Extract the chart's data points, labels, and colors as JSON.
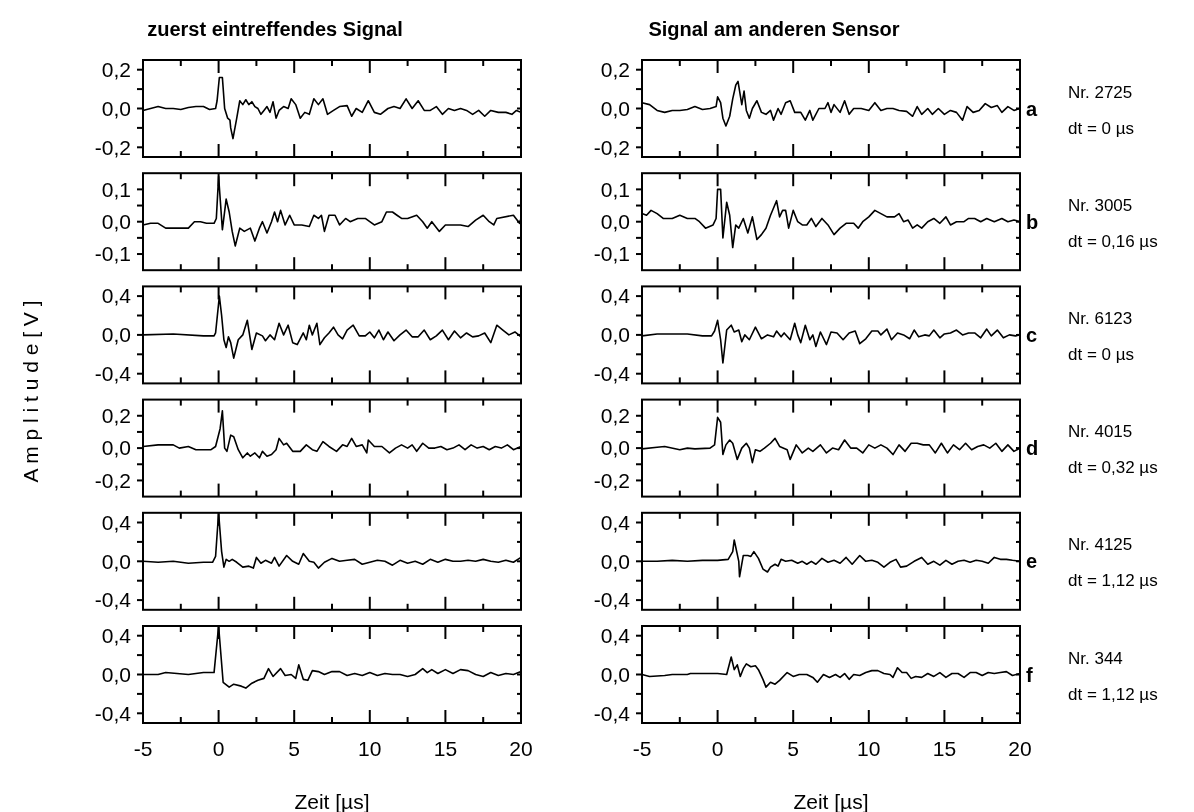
{
  "chart_data": [
    {
      "type": "line",
      "title": "zuerst eintreffendes Signal",
      "color": "#000000",
      "tick_labels": "y",
      "xlim": [
        -5,
        20
      ],
      "xticks": [
        -5,
        {
          "value": -2.5,
          "label": null
        },
        0,
        {
          "value": 2.5,
          "label": null
        },
        5,
        {
          "value": 7.5,
          "label": null
        },
        10,
        {
          "value": 12.5,
          "label": null
        },
        15,
        {
          "value": 17.5,
          "label": null
        },
        20
      ],
      "ylim": [
        -0.25,
        0.25
      ],
      "yticks": [
        {
          "value": -0.2,
          "label": "-0,2"
        },
        {
          "value": -0.1,
          "label": null
        },
        {
          "value": 0,
          "label": "0,0"
        },
        {
          "value": 0.1,
          "label": null
        },
        {
          "value": 0.2,
          "label": "0,2"
        }
      ],
      "x": [
        -5,
        -4.5,
        -4,
        -3.5,
        -3,
        -2.5,
        -2,
        -1.5,
        -1,
        -0.6,
        -0.2,
        -0.1,
        0.05,
        0.25,
        0.4,
        0.6,
        0.75,
        0.8,
        0.95,
        1.2,
        1.4,
        1.6,
        1.8,
        2,
        2.2,
        2.4,
        2.6,
        2.8,
        3,
        3.2,
        3.4,
        3.6,
        3.8,
        4,
        4.3,
        4.6,
        4.8,
        5.1,
        5.4,
        5.7,
        6,
        6.3,
        6.6,
        6.9,
        7.2,
        7.6,
        8,
        8.5,
        8.8,
        9.1,
        9.5,
        9.9,
        10.3,
        10.7,
        11.2,
        11.6,
        12,
        12.4,
        12.8,
        13.2,
        13.6,
        14,
        14.4,
        14.8,
        15.2,
        15.6,
        16,
        16.4,
        16.8,
        17.2,
        17.6,
        18,
        18.5,
        19,
        19.4,
        19.7,
        20
      ],
      "values": [
        -0.01,
        0,
        0.01,
        0,
        0,
        -0.005,
        0.005,
        0.01,
        0.01,
        -0.005,
        0,
        0.04,
        0.16,
        0.16,
        0,
        -0.05,
        -0.06,
        -0.1,
        -0.155,
        -0.05,
        0.04,
        0.02,
        0.045,
        0.02,
        0.035,
        0.01,
        0,
        -0.03,
        -0.01,
        0.01,
        -0.02,
        0.035,
        -0.05,
        -0.01,
        0.01,
        0,
        0.05,
        0.02,
        -0.05,
        -0.02,
        -0.03,
        0.05,
        0.02,
        0.05,
        -0.03,
        -0.01,
        0.01,
        0.015,
        -0.04,
        0,
        -0.02,
        0.04,
        -0.02,
        -0.03,
        0,
        0.01,
        0,
        0.05,
        0,
        0.04,
        -0.01,
        -0.01,
        0.01,
        -0.03,
        0,
        -0.01,
        0,
        -0.01,
        -0.03,
        -0.01,
        -0.04,
        -0.01,
        -0.02,
        -0.02,
        -0.03,
        -0.01,
        -0.02
      ]
    },
    {
      "type": "line",
      "title": "Signal am anderen Sensor",
      "annotations": [
        "a",
        "Nr. 2725",
        "dt = 0 µs"
      ],
      "color": "#000000",
      "tick_labels": "y",
      "xlim": [
        -5,
        20
      ],
      "xticks": [
        -5,
        {
          "value": -2.5,
          "label": null
        },
        0,
        {
          "value": 2.5,
          "label": null
        },
        5,
        {
          "value": 7.5,
          "label": null
        },
        10,
        {
          "value": 12.5,
          "label": null
        },
        15,
        {
          "value": 17.5,
          "label": null
        },
        20
      ],
      "ylim": [
        -0.25,
        0.25
      ],
      "yticks": [
        {
          "value": -0.2,
          "label": "-0,2"
        },
        {
          "value": -0.1,
          "label": null
        },
        {
          "value": 0,
          "label": "0,0"
        },
        {
          "value": 0.1,
          "label": null
        },
        {
          "value": 0.2,
          "label": "0,2"
        }
      ],
      "x": [
        -5,
        -4.5,
        -4,
        -3.5,
        -3,
        -2.5,
        -2,
        -1.5,
        -1,
        -0.5,
        -0.1,
        0,
        0.2,
        0.35,
        0.55,
        0.8,
        1,
        1.2,
        1.35,
        1.6,
        1.75,
        1.9,
        2.1,
        2.3,
        2.6,
        2.9,
        3.2,
        3.5,
        3.7,
        4,
        4.2,
        4.5,
        4.8,
        5.1,
        5.5,
        5.8,
        6.1,
        6.3,
        6.7,
        7.1,
        7.3,
        7.5,
        7.7,
        8.1,
        8.4,
        8.7,
        9,
        9.5,
        10,
        10.4,
        10.8,
        11.2,
        11.6,
        12,
        12.5,
        12.9,
        13.2,
        13.5,
        13.9,
        14.2,
        14.6,
        15,
        15.4,
        15.8,
        16.2,
        16.5,
        16.9,
        17.3,
        17.7,
        18.1,
        18.5,
        18.8,
        19.2,
        19.6,
        20
      ],
      "values": [
        0.03,
        0.02,
        -0.01,
        -0.02,
        -0.01,
        -0.01,
        -0.005,
        0.01,
        -0.005,
        0,
        0.01,
        0.06,
        0.03,
        -0.05,
        -0.09,
        -0.04,
        0.05,
        0.12,
        0.14,
        0.02,
        0.09,
        -0.01,
        -0.05,
        0,
        0.04,
        -0.02,
        -0.03,
        -0.01,
        -0.06,
        0,
        -0.03,
        0.03,
        0.04,
        -0.02,
        -0.02,
        -0.06,
        -0.01,
        -0.06,
        0,
        0,
        0.03,
        -0.02,
        0.02,
        -0.02,
        0.04,
        -0.03,
        0,
        0,
        -0.01,
        0.03,
        -0.01,
        0,
        0,
        -0.01,
        -0.015,
        -0.04,
        0.01,
        -0.03,
        0,
        -0.03,
        0,
        -0.03,
        -0.01,
        -0.02,
        -0.06,
        0.01,
        -0.02,
        -0.01,
        0.025,
        0.005,
        0.015,
        -0.02,
        0.01,
        -0.01,
        0
      ]
    },
    {
      "type": "line",
      "color": "#000000",
      "tick_labels": "y",
      "xlim": [
        -5,
        20
      ],
      "xticks": [
        -5,
        {
          "value": -2.5,
          "label": null
        },
        0,
        {
          "value": 2.5,
          "label": null
        },
        5,
        {
          "value": 7.5,
          "label": null
        },
        10,
        {
          "value": 12.5,
          "label": null
        },
        15,
        {
          "value": 17.5,
          "label": null
        },
        20
      ],
      "ylim": [
        -0.15,
        0.15
      ],
      "yticks": [
        {
          "value": -0.1,
          "label": "-0,1"
        },
        {
          "value": -0.05,
          "label": null
        },
        {
          "value": 0,
          "label": "0,0"
        },
        {
          "value": 0.05,
          "label": null
        },
        {
          "value": 0.1,
          "label": "0,1"
        }
      ],
      "x": [
        -5,
        -4.5,
        -4,
        -3.5,
        -3,
        -2.5,
        -2,
        -1.6,
        -1.2,
        -0.8,
        -0.3,
        -0.15,
        0,
        0.25,
        0.5,
        0.7,
        0.9,
        1.1,
        1.4,
        1.7,
        2.1,
        2.4,
        2.7,
        2.9,
        3.2,
        3.5,
        3.7,
        3.9,
        4.1,
        4.4,
        4.7,
        5,
        5.5,
        6,
        6.3,
        6.6,
        6.8,
        7,
        7.3,
        7.7,
        8,
        8.4,
        8.7,
        9.2,
        9.7,
        10.3,
        10.8,
        11.1,
        11.5,
        11.8,
        12.1,
        12.5,
        13.1,
        13.5,
        13.8,
        14.1,
        14.6,
        15,
        15.5,
        16,
        16.5,
        17,
        17.5,
        17.9,
        18.2,
        18.4,
        19.5,
        19.9,
        20
      ],
      "values": [
        -0.01,
        -0.005,
        -0.005,
        -0.02,
        -0.02,
        -0.02,
        -0.02,
        0,
        0,
        -0.005,
        -0.005,
        0.01,
        0.14,
        -0.025,
        0.07,
        0.03,
        -0.03,
        -0.075,
        -0.02,
        -0.03,
        -0.02,
        -0.06,
        -0.02,
        0,
        -0.035,
        0,
        0.03,
        0,
        0.035,
        -0.01,
        0.02,
        -0.01,
        -0.01,
        -0.015,
        0.02,
        0.01,
        0.02,
        -0.03,
        0.02,
        0.02,
        -0.01,
        0.01,
        0,
        0.01,
        0.01,
        -0.01,
        0,
        0.03,
        0.03,
        0.02,
        0.01,
        0.01,
        0.02,
        0,
        -0.02,
        0,
        -0.03,
        -0.01,
        -0.01,
        -0.01,
        -0.015,
        0.005,
        0.02,
        0,
        -0.01,
        0.01,
        0.02,
        -0.005,
        0.01
      ]
    },
    {
      "type": "line",
      "annotations": [
        "b",
        "Nr. 3005",
        "dt = 0,16 µs"
      ],
      "color": "#000000",
      "tick_labels": "y",
      "xlim": [
        -5,
        20
      ],
      "xticks": [
        -5,
        {
          "value": -2.5,
          "label": null
        },
        0,
        {
          "value": 2.5,
          "label": null
        },
        5,
        {
          "value": 7.5,
          "label": null
        },
        10,
        {
          "value": 12.5,
          "label": null
        },
        15,
        {
          "value": 17.5,
          "label": null
        },
        20
      ],
      "ylim": [
        -0.15,
        0.15
      ],
      "yticks": [
        {
          "value": -0.1,
          "label": "-0,1"
        },
        {
          "value": -0.05,
          "label": null
        },
        {
          "value": 0,
          "label": "0,0"
        },
        {
          "value": 0.05,
          "label": null
        },
        {
          "value": 0.1,
          "label": "0,1"
        }
      ],
      "x": [
        -5,
        -4.7,
        -4.4,
        -4,
        -3.6,
        -3,
        -2.5,
        -2,
        -1.5,
        -1.2,
        -0.8,
        -0.3,
        -0.1,
        0,
        0.2,
        0.35,
        0.6,
        0.8,
        1,
        1.2,
        1.4,
        1.7,
        2,
        2.3,
        2.6,
        2.9,
        3.2,
        3.5,
        3.9,
        4.1,
        4.3,
        4.5,
        4.7,
        5,
        5.3,
        5.6,
        5.9,
        6.2,
        6.5,
        6.9,
        7.3,
        7.7,
        8.1,
        8.5,
        9,
        9.3,
        9.6,
        10,
        10.4,
        10.8,
        11.2,
        11.7,
        12,
        12.3,
        12.6,
        12.9,
        13.2,
        13.5,
        13.9,
        14.3,
        14.7,
        15.1,
        15.4,
        15.8,
        16.3,
        16.6,
        17,
        17.4,
        17.8,
        18.3,
        18.8,
        19.2,
        19.6,
        20
      ],
      "values": [
        0.025,
        0.02,
        0.035,
        0.025,
        0.01,
        0.01,
        0.02,
        0.01,
        0.01,
        0,
        -0.02,
        -0.01,
        0.01,
        0.1,
        0.1,
        -0.05,
        0.06,
        0.02,
        -0.08,
        -0.01,
        -0.02,
        0.01,
        -0.035,
        0.015,
        -0.055,
        -0.04,
        -0.02,
        0.02,
        0.065,
        0.015,
        0.035,
        0.035,
        -0.02,
        0.035,
        0,
        -0.01,
        -0.01,
        0.01,
        -0.015,
        0.01,
        -0.01,
        -0.04,
        -0.02,
        -0.005,
        -0.005,
        -0.02,
        0,
        0.015,
        0.035,
        0.025,
        0.015,
        0.015,
        0.025,
        0,
        0.005,
        -0.02,
        -0.01,
        -0.02,
        0,
        0.01,
        -0.005,
        0.015,
        -0.01,
        0,
        0,
        0.01,
        0.01,
        0,
        0.01,
        0,
        0.01,
        0,
        0.005,
        0
      ]
    },
    {
      "type": "line",
      "color": "#000000",
      "tick_labels": "y",
      "xlim": [
        -5,
        20
      ],
      "xticks": [
        -5,
        {
          "value": -2.5,
          "label": null
        },
        0,
        {
          "value": 2.5,
          "label": null
        },
        5,
        {
          "value": 7.5,
          "label": null
        },
        10,
        {
          "value": 12.5,
          "label": null
        },
        15,
        {
          "value": 17.5,
          "label": null
        },
        20
      ],
      "ylim": [
        -0.5,
        0.5
      ],
      "yticks": [
        {
          "value": -0.4,
          "label": "-0,4"
        },
        {
          "value": -0.2,
          "label": null
        },
        {
          "value": 0,
          "label": "0,0"
        },
        {
          "value": 0.2,
          "label": null
        },
        {
          "value": 0.4,
          "label": "0,4"
        }
      ],
      "x": [
        -5,
        -3,
        -1,
        -0.3,
        -0.2,
        0.05,
        0.2,
        0.35,
        0.5,
        0.65,
        0.8,
        1,
        1.3,
        1.6,
        1.9,
        2.2,
        2.5,
        2.9,
        3.1,
        3.4,
        3.7,
        4,
        4.3,
        4.6,
        4.9,
        5.2,
        5.6,
        5.8,
        6,
        6.2,
        6.5,
        6.7,
        7,
        7.3,
        7.6,
        7.9,
        8.2,
        8.5,
        8.9,
        9.3,
        9.7,
        10,
        10.3,
        10.6,
        10.9,
        11.2,
        11.6,
        12,
        12.4,
        12.8,
        13.2,
        13.6,
        14,
        14.4,
        14.8,
        15.2,
        15.6,
        16,
        16.4,
        16.8,
        17.2,
        17.6,
        18,
        18.4,
        18.8,
        19.2,
        19.6,
        20
      ],
      "values": [
        0,
        0.01,
        -0.01,
        -0.01,
        0.02,
        0.4,
        0.2,
        -0.05,
        -0.13,
        -0.02,
        -0.08,
        -0.24,
        -0.05,
        0,
        0.15,
        -0.15,
        0.02,
        -0.01,
        -0.06,
        0,
        -0.05,
        0.12,
        0,
        0.1,
        -0.08,
        -0.1,
        0.02,
        -0.05,
        0.1,
        0,
        0.12,
        -0.1,
        -0.03,
        0.02,
        0.08,
        0,
        -0.04,
        0.05,
        0.1,
        -0.01,
        -0.01,
        0.03,
        -0.03,
        0.05,
        -0.05,
        0.03,
        -0.06,
        0,
        0.05,
        -0.02,
        -0.02,
        0.05,
        -0.05,
        -0.01,
        0.05,
        -0.05,
        0.04,
        -0.03,
        0.02,
        -0.02,
        -0.01,
        0.02,
        -0.08,
        0.1,
        0.05,
        0,
        0.03,
        -0.02
      ]
    },
    {
      "type": "line",
      "annotations": [
        "c",
        "Nr. 6123",
        "dt = 0 µs"
      ],
      "color": "#000000",
      "tick_labels": "y",
      "xlim": [
        -5,
        20
      ],
      "xticks": [
        -5,
        {
          "value": -2.5,
          "label": null
        },
        0,
        {
          "value": 2.5,
          "label": null
        },
        5,
        {
          "value": 7.5,
          "label": null
        },
        10,
        {
          "value": 12.5,
          "label": null
        },
        15,
        {
          "value": 17.5,
          "label": null
        },
        20
      ],
      "ylim": [
        -0.5,
        0.5
      ],
      "yticks": [
        {
          "value": -0.4,
          "label": "-0,4"
        },
        {
          "value": -0.2,
          "label": null
        },
        {
          "value": 0,
          "label": "0,0"
        },
        {
          "value": 0.2,
          "label": null
        },
        {
          "value": 0.4,
          "label": "0,4"
        }
      ],
      "x": [
        -5,
        -4,
        -3,
        -2,
        -1,
        -0.4,
        -0.2,
        0,
        0.2,
        0.35,
        0.6,
        0.9,
        1.1,
        1.4,
        1.6,
        1.8,
        2.1,
        2.5,
        2.9,
        3.3,
        3.7,
        3.9,
        4.2,
        4.4,
        4.8,
        5.1,
        5.3,
        5.5,
        5.8,
        6.1,
        6.3,
        6.5,
        6.8,
        7.2,
        7.5,
        7.9,
        8.3,
        8.7,
        9.1,
        9.4,
        9.8,
        10.2,
        10.6,
        10.8,
        11.2,
        11.5,
        11.9,
        12.3,
        12.7,
        13,
        13.3,
        13.7,
        14,
        14.3,
        14.7,
        15,
        15.4,
        15.8,
        16.2,
        16.6,
        17,
        17.4,
        17.8,
        18.1,
        18.5,
        18.9,
        19.3,
        19.7,
        20
      ],
      "values": [
        -0.01,
        0.01,
        0.01,
        0.01,
        -0.01,
        -0.01,
        0.04,
        0.15,
        -0.05,
        -0.29,
        0.05,
        0.1,
        0.03,
        0.05,
        -0.07,
        0,
        -0.05,
        0.08,
        -0.04,
        0,
        -0.02,
        0.04,
        -0.02,
        0.02,
        -0.05,
        0.12,
        0,
        -0.08,
        0.1,
        -0.05,
        0,
        -0.12,
        0.03,
        -0.1,
        0.03,
        0.02,
        -0.05,
        0.02,
        0.04,
        -0.09,
        -0.04,
        0.04,
        0.04,
        0,
        0.06,
        -0.05,
        0.02,
        0,
        -0.04,
        0.05,
        -0.02,
        0,
        -0.01,
        0.05,
        -0.03,
        0.01,
        0.02,
        0.05,
        0,
        0.02,
        0.02,
        -0.03,
        0.06,
        -0.01,
        0.05,
        -0.03,
        0,
        -0.01,
        0
      ]
    },
    {
      "type": "line",
      "ylabel": "A m p l i t u d e   [ V ]",
      "color": "#000000",
      "tick_labels": "y",
      "xlim": [
        -5,
        20
      ],
      "xticks": [
        -5,
        {
          "value": -2.5,
          "label": null
        },
        0,
        {
          "value": 2.5,
          "label": null
        },
        5,
        {
          "value": 7.5,
          "label": null
        },
        10,
        {
          "value": 12.5,
          "label": null
        },
        15,
        {
          "value": 17.5,
          "label": null
        },
        20
      ],
      "ylim": [
        -0.3,
        0.3
      ],
      "yticks": [
        {
          "value": -0.2,
          "label": "-0,2"
        },
        {
          "value": -0.1,
          "label": null
        },
        {
          "value": 0,
          "label": "0,0"
        },
        {
          "value": 0.1,
          "label": null
        },
        {
          "value": 0.2,
          "label": "0,2"
        }
      ],
      "x": [
        -5,
        -4,
        -3,
        -2.6,
        -2,
        -1.5,
        -0.5,
        -0.2,
        0.1,
        0.25,
        0.4,
        0.55,
        0.8,
        1,
        1.3,
        1.6,
        1.9,
        2.1,
        2.4,
        2.7,
        2.9,
        3.2,
        3.5,
        3.8,
        4,
        4.3,
        4.5,
        4.9,
        5.4,
        5.8,
        6.2,
        6.5,
        6.9,
        7.3,
        7.8,
        8.2,
        8.5,
        8.8,
        9.1,
        9.5,
        9.8,
        9.9,
        10.3,
        10.8,
        11.3,
        11.7,
        12.1,
        12.5,
        12.8,
        13.1,
        13.5,
        13.9,
        14.3,
        14.7,
        15.1,
        15.5,
        15.9,
        16.3,
        16.7,
        17.1,
        17.5,
        17.9,
        18.3,
        18.7,
        19.1,
        19.5,
        20
      ],
      "values": [
        0.01,
        0.02,
        0.02,
        0,
        0.01,
        -0.01,
        -0.01,
        0.01,
        0.12,
        0.23,
        0,
        -0.02,
        0.08,
        0.07,
        -0.01,
        -0.06,
        -0.03,
        -0.05,
        -0.03,
        -0.06,
        -0.02,
        -0.05,
        -0.04,
        -0.01,
        0.06,
        0.02,
        0.03,
        -0.02,
        -0.02,
        0.02,
        -0.01,
        -0.02,
        0.04,
        0.01,
        -0.02,
        0.02,
        0.01,
        0.06,
        0.01,
        0.02,
        -0.03,
        0.05,
        0.01,
        0.01,
        -0.03,
        0,
        0.02,
        0,
        0.02,
        -0.02,
        0.03,
        0,
        0,
        0.01,
        -0.01,
        0,
        0.02,
        -0.01,
        0.02,
        0,
        0.01,
        -0.01,
        0.01,
        0,
        0.02,
        -0.01,
        0.01
      ]
    },
    {
      "type": "line",
      "annotations": [
        "d",
        "Nr. 4015",
        "dt = 0,32 µs"
      ],
      "color": "#000000",
      "tick_labels": "y",
      "xlim": [
        -5,
        20
      ],
      "xticks": [
        -5,
        {
          "value": -2.5,
          "label": null
        },
        0,
        {
          "value": 2.5,
          "label": null
        },
        5,
        {
          "value": 7.5,
          "label": null
        },
        10,
        {
          "value": 12.5,
          "label": null
        },
        15,
        {
          "value": 17.5,
          "label": null
        },
        20
      ],
      "ylim": [
        -0.3,
        0.3
      ],
      "yticks": [
        {
          "value": -0.2,
          "label": "-0,2"
        },
        {
          "value": -0.1,
          "label": null
        },
        {
          "value": 0,
          "label": "0,0"
        },
        {
          "value": 0.1,
          "label": null
        },
        {
          "value": 0.2,
          "label": "0,2"
        }
      ],
      "x": [
        -5,
        -4,
        -3.5,
        -2.5,
        -2,
        -1.5,
        -0.5,
        -0.2,
        0,
        0.2,
        0.35,
        0.55,
        0.8,
        1,
        1.3,
        1.6,
        1.9,
        2.1,
        2.3,
        2.5,
        2.8,
        3.1,
        3.5,
        3.8,
        4.1,
        4.6,
        4.8,
        5.2,
        5.6,
        6,
        6.3,
        6.8,
        7.2,
        7.6,
        8,
        8.4,
        8.8,
        9.2,
        9.6,
        10,
        10.4,
        10.8,
        11.2,
        11.6,
        12,
        12.4,
        12.8,
        13.2,
        13.6,
        14,
        14.4,
        14.8,
        15.2,
        15.6,
        16,
        16.4,
        16.8,
        17.2,
        17.6,
        18,
        18.4,
        18.8,
        19.2,
        19.6,
        20
      ],
      "values": [
        -0.005,
        0.005,
        0.01,
        -0.01,
        0,
        -0.005,
        0,
        0.02,
        0.19,
        0.16,
        -0.04,
        0.02,
        0.05,
        0.03,
        -0.07,
        0,
        0.03,
        0,
        -0.09,
        -0.01,
        -0.02,
        0,
        0.03,
        0.06,
        0.01,
        -0.01,
        -0.07,
        0.02,
        -0.03,
        0,
        -0.02,
        0.02,
        -0.03,
        0,
        -0.01,
        0.05,
        0,
        0,
        -0.03,
        0.02,
        0,
        0.02,
        0,
        -0.04,
        0.02,
        -0.02,
        0.03,
        0.03,
        0.02,
        0.02,
        -0.03,
        0.03,
        -0.03,
        0.02,
        -0.01,
        0.03,
        -0.01,
        0.01,
        0.02,
        0,
        0.03,
        -0.02,
        0.02,
        -0.02,
        0
      ]
    },
    {
      "type": "line",
      "color": "#000000",
      "tick_labels": "y",
      "xlim": [
        -5,
        20
      ],
      "xticks": [
        -5,
        {
          "value": -2.5,
          "label": null
        },
        0,
        {
          "value": 2.5,
          "label": null
        },
        5,
        {
          "value": 7.5,
          "label": null
        },
        10,
        {
          "value": 12.5,
          "label": null
        },
        15,
        {
          "value": 17.5,
          "label": null
        },
        20
      ],
      "ylim": [
        -0.5,
        0.5
      ],
      "yticks": [
        {
          "value": -0.4,
          "label": "-0,4"
        },
        {
          "value": -0.2,
          "label": null
        },
        {
          "value": 0,
          "label": "0,0"
        },
        {
          "value": 0.2,
          "label": null
        },
        {
          "value": 0.4,
          "label": "0,4"
        }
      ],
      "x": [
        -5,
        -4,
        -3,
        -2,
        -1,
        -0.4,
        -0.2,
        0,
        0.2,
        0.35,
        0.5,
        0.7,
        0.9,
        1.2,
        1.6,
        2,
        2.3,
        2.5,
        2.8,
        3.1,
        3.5,
        3.7,
        4,
        4.5,
        4.9,
        5.3,
        5.6,
        6,
        6.3,
        6.6,
        7,
        7.5,
        8,
        8.5,
        9,
        9.5,
        10,
        10.5,
        11,
        11.5,
        12,
        12.5,
        13,
        13.5,
        14,
        14.5,
        15,
        15.5,
        16,
        16.5,
        17,
        17.5,
        18,
        18.5,
        19,
        19.5,
        20
      ],
      "values": [
        0,
        -0.01,
        0,
        -0.02,
        -0.01,
        -0.01,
        0.05,
        0.5,
        0.1,
        -0.06,
        0.02,
        0,
        0.02,
        -0.01,
        -0.06,
        -0.05,
        -0.07,
        0.04,
        -0.02,
        0.01,
        -0.02,
        0.04,
        -0.05,
        0.06,
        0,
        -0.03,
        0.08,
        0,
        -0.01,
        -0.07,
        -0.01,
        0.03,
        0,
        0.01,
        0.02,
        -0.03,
        -0.01,
        0.01,
        0,
        -0.04,
        0.01,
        -0.02,
        0,
        -0.03,
        0.02,
        -0.01,
        0.02,
        0,
        0,
        0.01,
        0,
        0.02,
        0,
        -0.01,
        0.01,
        -0.01,
        0.04
      ]
    },
    {
      "type": "line",
      "annotations": [
        "e",
        "Nr. 4125",
        "dt = 1,12 µs"
      ],
      "color": "#000000",
      "tick_labels": "y",
      "xlim": [
        -5,
        20
      ],
      "xticks": [
        -5,
        {
          "value": -2.5,
          "label": null
        },
        0,
        {
          "value": 2.5,
          "label": null
        },
        5,
        {
          "value": 7.5,
          "label": null
        },
        10,
        {
          "value": 12.5,
          "label": null
        },
        15,
        {
          "value": 17.5,
          "label": null
        },
        20
      ],
      "ylim": [
        -0.5,
        0.5
      ],
      "yticks": [
        {
          "value": -0.4,
          "label": "-0,4"
        },
        {
          "value": -0.2,
          "label": null
        },
        {
          "value": 0,
          "label": "0,0"
        },
        {
          "value": 0.2,
          "label": null
        },
        {
          "value": 0.4,
          "label": "0,4"
        }
      ],
      "x": [
        -5,
        -4,
        -3,
        -2,
        -1,
        0,
        0.7,
        1,
        1.1,
        1.4,
        1.45,
        1.7,
        2,
        2.2,
        2.4,
        2.7,
        3,
        3.3,
        3.5,
        3.8,
        4,
        4.2,
        4.5,
        4.9,
        5.3,
        5.6,
        5.9,
        6.2,
        6.5,
        6.9,
        7.3,
        7.7,
        8.1,
        8.5,
        8.9,
        9.4,
        9.8,
        10.2,
        10.6,
        11,
        11.4,
        11.8,
        12.1,
        12.5,
        13,
        13.5,
        13.9,
        14.3,
        14.7,
        15.1,
        15.5,
        15.9,
        16.3,
        16.7,
        17.1,
        17.5,
        17.9,
        18.3,
        18.7,
        19.1,
        19.5,
        20
      ],
      "values": [
        0,
        0,
        0.01,
        0,
        0.01,
        0.01,
        0.02,
        0.1,
        0.22,
        0,
        -0.16,
        0.06,
        0.06,
        0.05,
        0.1,
        0.03,
        -0.08,
        -0.11,
        -0.06,
        -0.03,
        -0.05,
        0.02,
        0,
        0.01,
        -0.02,
        0,
        -0.03,
        0,
        -0.03,
        0.03,
        -0.01,
        0.01,
        -0.02,
        0.04,
        -0.03,
        0.06,
        0,
        0.01,
        -0.01,
        -0.06,
        -0.01,
        0.02,
        -0.06,
        -0.05,
        0,
        0.04,
        -0.03,
        0,
        -0.04,
        0.01,
        -0.03,
        0,
        0.01,
        -0.01,
        0.01,
        0,
        -0.02,
        0.04,
        0.02,
        0.02,
        0.01,
        0
      ]
    },
    {
      "type": "line",
      "xlabel": "Zeit [µs]",
      "color": "#000000",
      "xlim": [
        -5,
        20
      ],
      "xticks": [
        -5,
        {
          "value": -2.5,
          "label": null
        },
        0,
        {
          "value": 2.5,
          "label": null
        },
        5,
        {
          "value": 7.5,
          "label": null
        },
        10,
        {
          "value": 12.5,
          "label": null
        },
        15,
        {
          "value": 17.5,
          "label": null
        },
        20
      ],
      "ylim": [
        -0.5,
        0.5
      ],
      "yticks": [
        {
          "value": -0.4,
          "label": "-0,4"
        },
        {
          "value": -0.2,
          "label": null
        },
        {
          "value": 0,
          "label": "0,0"
        },
        {
          "value": 0.2,
          "label": null
        },
        {
          "value": 0.4,
          "label": "0,4"
        }
      ],
      "x": [
        -5,
        -4,
        -3.5,
        -2,
        -1,
        -0.3,
        0,
        0.3,
        0.7,
        1,
        1.5,
        1.8,
        2.2,
        2.6,
        3,
        3.3,
        3.6,
        4.1,
        4.4,
        4.8,
        5.1,
        5.3,
        5.6,
        5.9,
        6.2,
        6.6,
        7,
        7.5,
        8,
        8.5,
        9,
        9.5,
        10,
        10.5,
        11,
        11.5,
        12,
        12.5,
        13,
        13.5,
        13.8,
        14.1,
        14.5,
        15,
        15.5,
        16,
        16.5,
        17,
        17.5,
        18,
        18.5,
        19,
        19.5,
        20
      ],
      "values": [
        0,
        0,
        0.02,
        0,
        0.02,
        0.02,
        0.5,
        -0.08,
        -0.13,
        -0.1,
        -0.12,
        -0.14,
        -0.09,
        -0.06,
        -0.04,
        0.06,
        -0.02,
        0.06,
        -0.01,
        0,
        -0.04,
        0.1,
        -0.05,
        -0.06,
        0.04,
        0.03,
        0,
        0.03,
        0.03,
        -0.01,
        0.01,
        -0.01,
        0.02,
        -0.01,
        0.01,
        0,
        0,
        -0.02,
        0,
        0.06,
        0.02,
        0.05,
        0.01,
        0.05,
        0.01,
        0.05,
        0.04,
        0,
        -0.02,
        0.02,
        -0.01,
        0.01,
        0,
        0.03
      ]
    },
    {
      "type": "line",
      "xlabel": "Zeit [µs]",
      "annotations": [
        "f",
        "Nr. 344",
        "dt = 1,12 µs"
      ],
      "color": "#000000",
      "xlim": [
        -5,
        20
      ],
      "xticks": [
        -5,
        {
          "value": -2.5,
          "label": null
        },
        0,
        {
          "value": 2.5,
          "label": null
        },
        5,
        {
          "value": 7.5,
          "label": null
        },
        10,
        {
          "value": 12.5,
          "label": null
        },
        15,
        {
          "value": 17.5,
          "label": null
        },
        20
      ],
      "ylim": [
        -0.5,
        0.5
      ],
      "yticks": [
        {
          "value": -0.4,
          "label": "-0,4"
        },
        {
          "value": -0.2,
          "label": null
        },
        {
          "value": 0,
          "label": "0,0"
        },
        {
          "value": 0.2,
          "label": null
        },
        {
          "value": 0.4,
          "label": "0,4"
        }
      ],
      "x": [
        -5,
        -4.5,
        -3.5,
        -3,
        -2,
        -1.8,
        -1,
        0,
        0.6,
        0.9,
        1.1,
        1.3,
        1.5,
        1.7,
        1.9,
        2.2,
        2.5,
        2.7,
        3,
        3.2,
        3.5,
        3.8,
        4.1,
        4.6,
        5,
        5.4,
        5.9,
        6.3,
        6.6,
        7,
        7.4,
        7.8,
        8.1,
        8.4,
        8.7,
        9,
        9.4,
        9.8,
        10.2,
        10.6,
        11,
        11.4,
        11.6,
        11.9,
        12.2,
        12.5,
        12.8,
        13.1,
        13.5,
        13.9,
        14.3,
        14.7,
        15.1,
        15.5,
        15.9,
        16.3,
        16.7,
        17.1,
        17.5,
        17.9,
        18.3,
        18.7,
        19.1,
        19.5,
        20
      ],
      "values": [
        0,
        -0.02,
        -0.01,
        0,
        0,
        0.01,
        0.01,
        0.01,
        0,
        0.18,
        0.05,
        0.1,
        -0.02,
        0.06,
        0.11,
        0.08,
        0.09,
        0.05,
        -0.05,
        -0.13,
        -0.08,
        -0.1,
        -0.06,
        0.02,
        -0.02,
        0,
        0,
        -0.03,
        -0.08,
        0,
        -0.03,
        0,
        -0.03,
        0.01,
        -0.05,
        0,
        -0.01,
        0.02,
        0.04,
        0.04,
        0.01,
        0,
        -0.03,
        0.07,
        0.02,
        0.02,
        -0.04,
        -0.02,
        -0.03,
        0.01,
        -0.02,
        0.02,
        -0.03,
        0.01,
        0.01,
        -0.03,
        0.02,
        0.02,
        -0.01,
        0.02,
        0.01,
        0.02,
        0.03,
        -0.01,
        0.01
      ]
    }
  ]
}
